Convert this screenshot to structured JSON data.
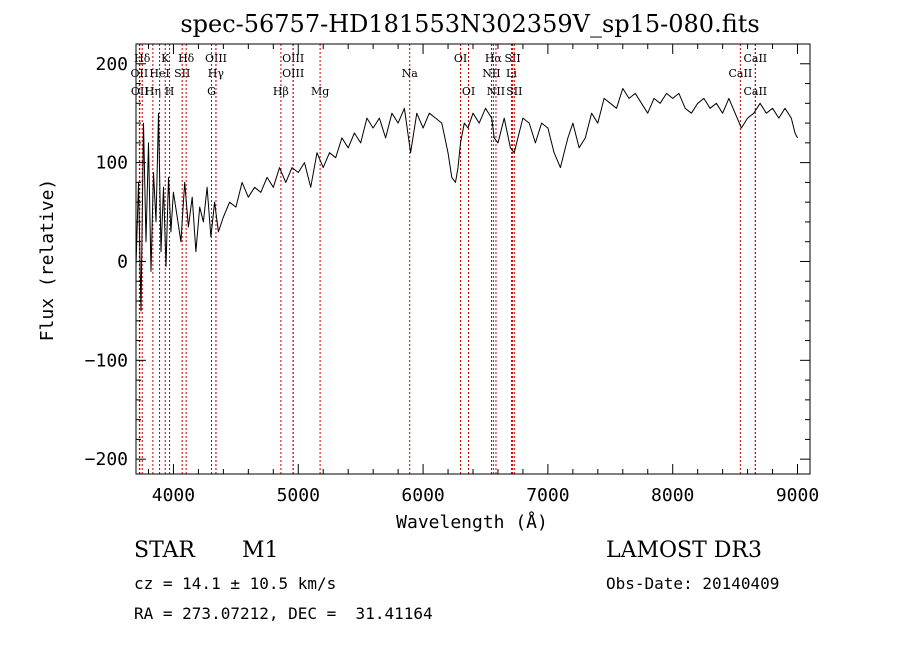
{
  "chart_data": {
    "type": "line",
    "title": "spec-56757-HD181553N302359V_sp15-080.fits",
    "xlabel": "Wavelength (Å)",
    "ylabel": "Flux (relative)",
    "xlim": [
      3700,
      9100
    ],
    "ylim": [
      -215,
      220
    ],
    "xticks": [
      4000,
      5000,
      6000,
      7000,
      8000,
      9000
    ],
    "yticks": [
      -200,
      -100,
      0,
      100,
      200
    ],
    "grid": false,
    "line_color": "#000000",
    "marker_color": "#c00000",
    "series": [
      {
        "x": [
          3700,
          3720,
          3740,
          3760,
          3780,
          3800,
          3820,
          3840,
          3860,
          3880,
          3900,
          3920,
          3940,
          3960,
          3980,
          4000,
          4030,
          4060,
          4090,
          4120,
          4150,
          4180,
          4210,
          4240,
          4270,
          4300,
          4330,
          4360,
          4400,
          4450,
          4500,
          4550,
          4600,
          4650,
          4700,
          4750,
          4800,
          4850,
          4900,
          4950,
          5000,
          5050,
          5100,
          5150,
          5200,
          5250,
          5300,
          5350,
          5400,
          5450,
          5500,
          5550,
          5600,
          5650,
          5700,
          5750,
          5800,
          5850,
          5900,
          5950,
          6000,
          6050,
          6100,
          6150,
          6200,
          6230,
          6260,
          6280,
          6300,
          6330,
          6360,
          6400,
          6450,
          6500,
          6550,
          6570,
          6600,
          6650,
          6700,
          6730,
          6760,
          6800,
          6850,
          6900,
          6950,
          7000,
          7050,
          7100,
          7130,
          7160,
          7200,
          7250,
          7300,
          7350,
          7400,
          7450,
          7500,
          7550,
          7600,
          7650,
          7700,
          7750,
          7800,
          7850,
          7900,
          7950,
          8000,
          8050,
          8100,
          8150,
          8200,
          8250,
          8300,
          8350,
          8400,
          8450,
          8500,
          8550,
          8600,
          8650,
          8700,
          8750,
          8800,
          8850,
          8900,
          8950,
          8980,
          9000
        ],
        "y": [
          -5,
          80,
          -50,
          140,
          20,
          120,
          -10,
          90,
          40,
          150,
          10,
          75,
          -5,
          85,
          30,
          70,
          45,
          20,
          80,
          35,
          65,
          10,
          55,
          40,
          75,
          25,
          60,
          30,
          45,
          60,
          55,
          80,
          65,
          75,
          70,
          85,
          75,
          95,
          80,
          95,
          90,
          100,
          75,
          110,
          95,
          110,
          105,
          125,
          115,
          130,
          120,
          145,
          135,
          145,
          125,
          150,
          140,
          155,
          110,
          150,
          135,
          150,
          145,
          140,
          110,
          85,
          80,
          95,
          120,
          140,
          135,
          150,
          140,
          155,
          145,
          125,
          120,
          145,
          115,
          110,
          125,
          145,
          140,
          120,
          140,
          135,
          110,
          95,
          110,
          125,
          140,
          115,
          125,
          150,
          140,
          165,
          160,
          155,
          175,
          165,
          170,
          160,
          150,
          165,
          160,
          170,
          165,
          170,
          155,
          150,
          160,
          165,
          155,
          160,
          150,
          165,
          150,
          135,
          145,
          150,
          160,
          150,
          155,
          145,
          155,
          145,
          130,
          125
        ],
        "note": "approximate digitized spectrum envelope"
      }
    ],
    "lines": [
      {
        "label": "Hδ",
        "wavelength": 3750,
        "row": 1
      },
      {
        "label": "OII",
        "wavelength": 3727,
        "row": 2
      },
      {
        "label": "OII",
        "wavelength": 3730,
        "row": 3
      },
      {
        "label": "Hη",
        "wavelength": 3835,
        "row": 3
      },
      {
        "label": "HeI",
        "wavelength": 3889,
        "row": 2
      },
      {
        "label": "K",
        "wavelength": 3934,
        "row": 1
      },
      {
        "label": "H",
        "wavelength": 3969,
        "row": 3
      },
      {
        "label": "SII",
        "wavelength": 4070,
        "row": 2
      },
      {
        "label": "Hδ",
        "wavelength": 4102,
        "row": 1
      },
      {
        "label": "OIII",
        "wavelength": 4341,
        "row": 1
      },
      {
        "label": "Hγ",
        "wavelength": 4340,
        "row": 2
      },
      {
        "label": "G",
        "wavelength": 4305,
        "row": 3
      },
      {
        "label": "Hβ",
        "wavelength": 4861,
        "row": 3
      },
      {
        "label": "OIII",
        "wavelength": 4959,
        "row": 1
      },
      {
        "label": "OIII",
        "wavelength": 4959,
        "row": 2
      },
      {
        "label": "Mg",
        "wavelength": 5175,
        "row": 3
      },
      {
        "label": "Na",
        "wavelength": 5893,
        "row": 2
      },
      {
        "label": "OI",
        "wavelength": 6300,
        "row": 1
      },
      {
        "label": "OI",
        "wavelength": 6364,
        "row": 3
      },
      {
        "label": "Hα",
        "wavelength": 6563,
        "row": 1
      },
      {
        "label": "NII",
        "wavelength": 6548,
        "row": 2
      },
      {
        "label": "NII",
        "wavelength": 6584,
        "row": 3
      },
      {
        "label": "SII",
        "wavelength": 6717,
        "row": 1
      },
      {
        "label": "Li",
        "wavelength": 6708,
        "row": 2
      },
      {
        "label": "SII",
        "wavelength": 6731,
        "row": 3
      },
      {
        "label": "CaII",
        "wavelength": 8662,
        "row": 1
      },
      {
        "label": "CaII",
        "wavelength": 8542,
        "row": 2
      },
      {
        "label": "CaII",
        "wavelength": 8662,
        "row": 3
      }
    ]
  },
  "info": {
    "class": "STAR",
    "subclass": "M1",
    "survey": "LAMOST DR3",
    "cz": "cz = 14.1 ± 10.5 km/s",
    "obs_date": "Obs-Date: 20140409",
    "coords": "RA = 273.07212, DEC =  31.41164"
  }
}
